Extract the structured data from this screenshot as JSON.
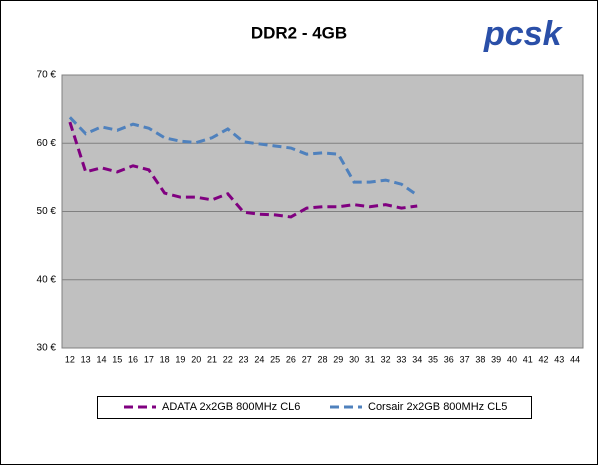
{
  "chart_data": {
    "type": "line",
    "title": "DDR2 - 4GB",
    "logo": "pcsk",
    "categories": [
      12,
      13,
      14,
      15,
      16,
      17,
      18,
      19,
      20,
      21,
      22,
      23,
      24,
      25,
      26,
      27,
      28,
      29,
      30,
      31,
      32,
      33,
      34,
      35,
      36,
      37,
      38,
      39,
      40,
      41,
      42,
      43,
      44
    ],
    "series": [
      {
        "name": "ADATA 2x2GB 800MHz CL6",
        "color": "#800080",
        "values": [
          63.1,
          55.8,
          56.4,
          55.8,
          56.7,
          56.1,
          52.7,
          52.1,
          52.1,
          51.7,
          52.6,
          49.9,
          49.6,
          49.5,
          49.2,
          50.5,
          50.7,
          50.7,
          51.0,
          50.7,
          51.0,
          50.5,
          50.8,
          null,
          null,
          null,
          null,
          null,
          null,
          null,
          null,
          null,
          null
        ]
      },
      {
        "name": "Corsair 2x2GB 800MHz CL5",
        "color": "#4f81bd",
        "values": [
          63.8,
          61.4,
          62.4,
          61.9,
          62.8,
          62.2,
          60.8,
          60.3,
          60.1,
          60.8,
          62.1,
          60.2,
          59.9,
          59.6,
          59.3,
          58.4,
          58.6,
          58.4,
          54.3,
          54.3,
          54.6,
          54.0,
          52.4,
          null,
          null,
          null,
          null,
          null,
          null,
          null,
          null,
          null,
          null
        ]
      }
    ],
    "ylim": [
      30,
      70
    ],
    "yticks": [
      {
        "value": 30,
        "label": "30 €"
      },
      {
        "value": 40,
        "label": "40 €"
      },
      {
        "value": 50,
        "label": "50 €"
      },
      {
        "value": 60,
        "label": "60 €"
      },
      {
        "value": 70,
        "label": "70 €"
      }
    ],
    "grid": true,
    "legend": "bottom"
  }
}
